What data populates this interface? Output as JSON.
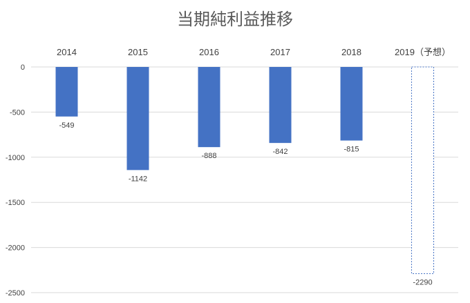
{
  "chart_data": {
    "type": "bar",
    "title": "当期純利益推移",
    "xlabel": "",
    "ylabel": "",
    "categories": [
      "2014",
      "2015",
      "2016",
      "2017",
      "2018",
      "2019（予想）"
    ],
    "values": [
      -549,
      -1142,
      -888,
      -842,
      -815,
      -2290
    ],
    "data_labels": [
      "-549",
      "-1142",
      "-888",
      "-842",
      "-815",
      "-2290"
    ],
    "forecast": [
      false,
      false,
      false,
      false,
      false,
      true
    ],
    "ylim": [
      -2500,
      0
    ],
    "y_ticks": [
      0,
      -500,
      -1000,
      -1500,
      -2000,
      -2500
    ],
    "y_tick_labels": [
      "0",
      "-500",
      "-1000",
      "-1500",
      "-2000",
      "-2500"
    ],
    "grid": true,
    "category_labels_position": "top",
    "colors": {
      "bar": "#4472c4",
      "forecast_border": "#4472c4",
      "forecast_fill": "#ffffff",
      "grid": "#d9d9d9"
    }
  }
}
